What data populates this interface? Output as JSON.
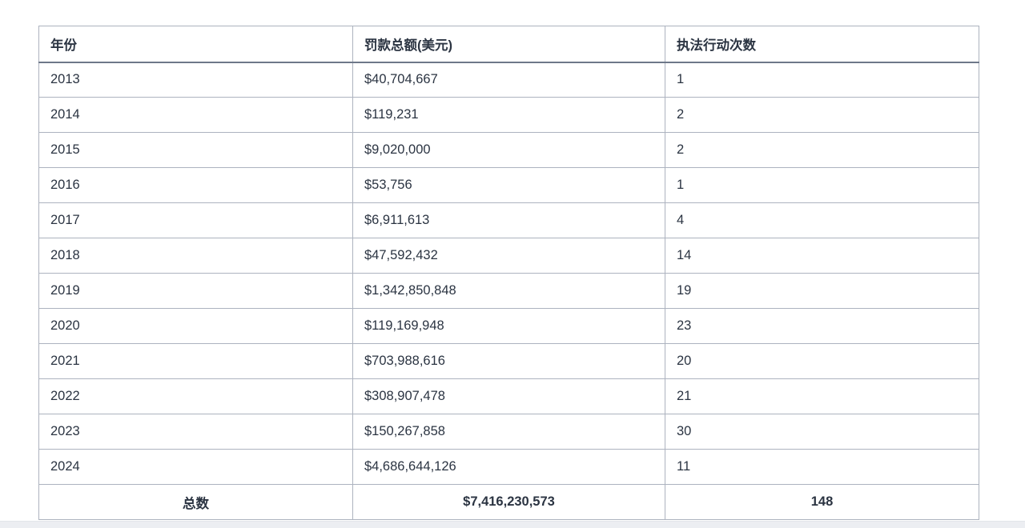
{
  "table": {
    "columns": [
      "年份",
      "罚款总额(美元)",
      "执法行动次数"
    ],
    "rows": [
      [
        "2013",
        "$40,704,667",
        "1"
      ],
      [
        "2014",
        "$119,231",
        "2"
      ],
      [
        "2015",
        "$9,020,000",
        "2"
      ],
      [
        "2016",
        "$53,756",
        "1"
      ],
      [
        "2017",
        "$6,911,613",
        "4"
      ],
      [
        "2018",
        "$47,592,432",
        "14"
      ],
      [
        "2019",
        "$1,342,850,848",
        "19"
      ],
      [
        "2020",
        "$119,169,948",
        "23"
      ],
      [
        "2021",
        "$703,988,616",
        "20"
      ],
      [
        "2022",
        "$308,907,478",
        "21"
      ],
      [
        "2023",
        "$150,267,858",
        "30"
      ],
      [
        "2024",
        "$4,686,644,126",
        "11"
      ]
    ],
    "footer": [
      "总数",
      "$7,416,230,573",
      "148"
    ]
  },
  "chart_data": {
    "type": "table",
    "title": "",
    "categories": [
      "2013",
      "2014",
      "2015",
      "2016",
      "2017",
      "2018",
      "2019",
      "2020",
      "2021",
      "2022",
      "2023",
      "2024"
    ],
    "series": [
      {
        "name": "罚款总额(美元)",
        "values": [
          40704667,
          119231,
          9020000,
          53756,
          6911613,
          47592432,
          1342850848,
          119169948,
          703988616,
          308907478,
          150267858,
          4686644126
        ]
      },
      {
        "name": "执法行动次数",
        "values": [
          1,
          2,
          2,
          1,
          4,
          14,
          19,
          23,
          20,
          21,
          30,
          11
        ]
      }
    ],
    "totals": {
      "罚款总额(美元)": 7416230573,
      "执法行动次数": 148,
      "label": "总数"
    }
  },
  "colors": {
    "text": "#2b3442",
    "border_inner": "#adb3bf",
    "border_outer": "#a7aeba",
    "header_rule": "#6e7889",
    "bottom_strip": "#eceef2",
    "background": "#ffffff"
  }
}
